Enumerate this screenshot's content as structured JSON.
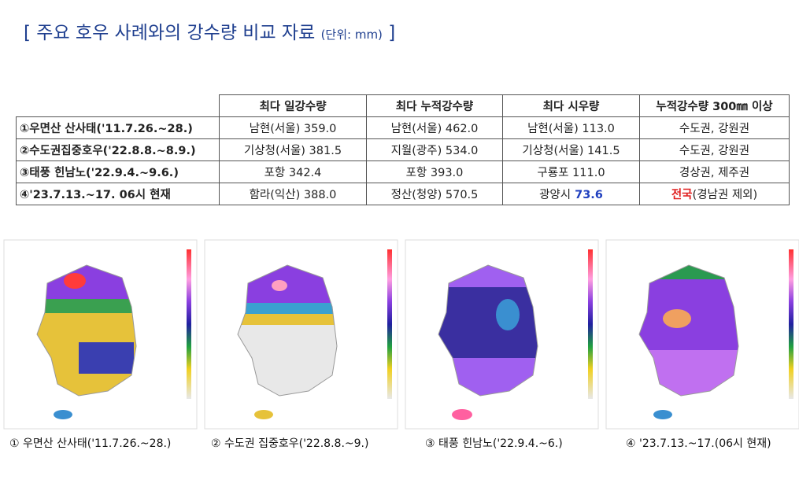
{
  "title": {
    "text": "[ 주요 호우 사례와의 강수량 비교 자료",
    "unit": "(단위: mm)",
    "close": "]"
  },
  "table": {
    "header": [
      "최다 일강수량",
      "최다 누적강수량",
      "최다 시우량",
      "누적강수량 300㎜ 이상"
    ],
    "rows": [
      [
        "①우면산 산사태('11.7.26.~28.)",
        "남현(서울) 359.0",
        "남현(서울) 462.0",
        "남현(서울) 113.0",
        "수도권, 강원권"
      ],
      [
        "②수도권집중호우('22.8.8.~8.9.)",
        "기상청(서울) 381.5",
        "지월(광주) 534.0",
        "기상청(서울) 141.5",
        "수도권, 강원권"
      ],
      [
        "③태풍 힌남노('22.9.4.~9.6.)",
        "포항 342.4",
        "포항 393.0",
        "구룡포 111.0",
        "경상권, 제주권"
      ],
      [
        "④'23.7.13.~17. 06시 현재",
        "함라(익산) 388.0",
        "정산(청양) 570.5",
        {
          "text": "광양시",
          "highlight": "73.6",
          "color": "#1f3fbf"
        },
        {
          "highlight": "전국",
          "text": "(경남권 제외)",
          "color": "#e02020"
        }
      ]
    ]
  },
  "maps": [
    {
      "caption": "① 우면산 산사태('11.7.26.~28.)"
    },
    {
      "caption": "② 수도권 집중호우('22.8.8.~9.)"
    },
    {
      "caption": "③ 태풍 힌남노('22.9.4.~6.)"
    },
    {
      "caption": "④ '23.7.13.~17.(06시 현재)"
    }
  ]
}
